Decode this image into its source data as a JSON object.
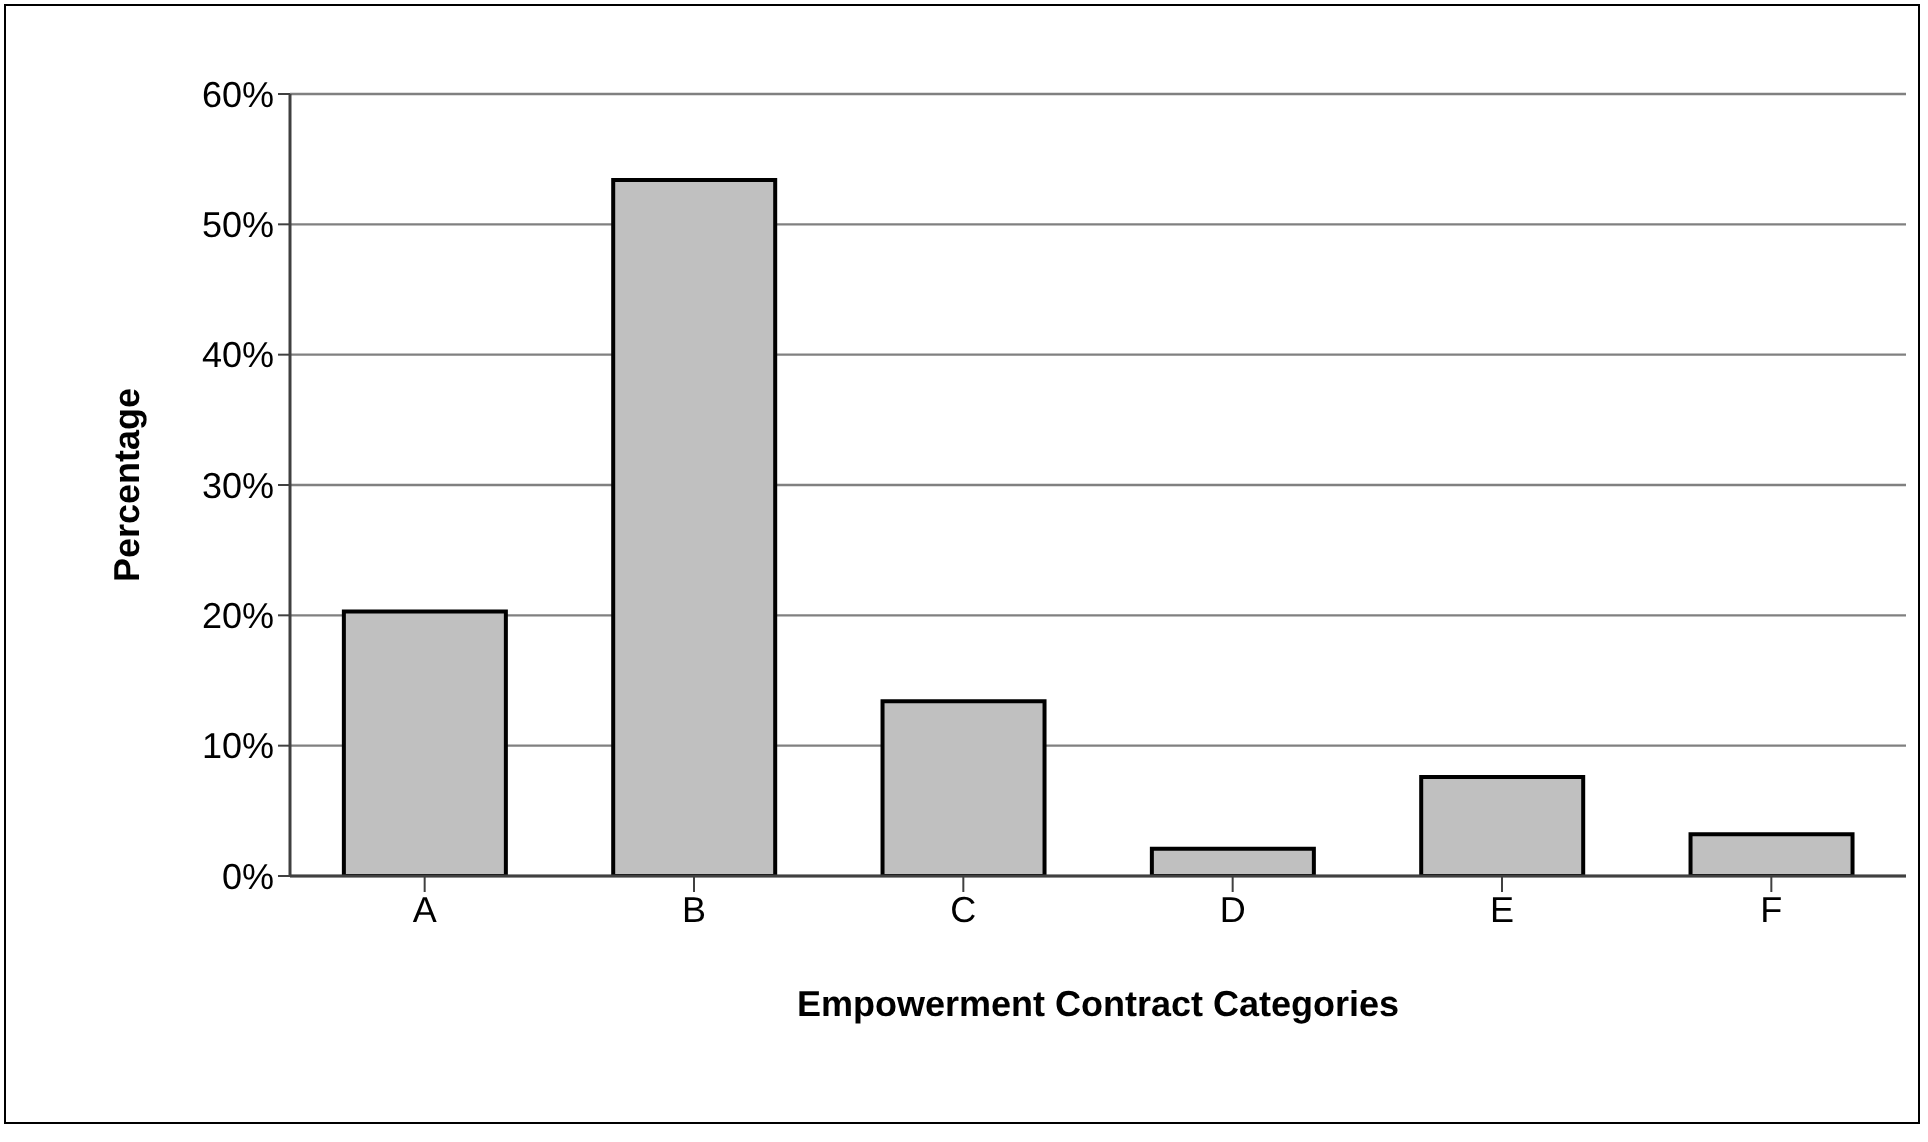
{
  "chart_data": {
    "type": "bar",
    "xlabel": "Empowerment Contract Categories",
    "ylabel": "Percentage",
    "categories": [
      "A",
      "B",
      "C",
      "D",
      "E",
      "F"
    ],
    "values": [
      20.3,
      53.4,
      13.4,
      2.1,
      7.6,
      3.2
    ],
    "color": "#c0c0c0",
    "ylim": [
      0,
      60
    ],
    "yticks": [
      {
        "value": 0,
        "label": "0%"
      },
      {
        "value": 10,
        "label": "10%"
      },
      {
        "value": 20,
        "label": "20%"
      },
      {
        "value": 30,
        "label": "30%"
      },
      {
        "value": 40,
        "label": "40%"
      },
      {
        "value": 50,
        "label": "50%"
      },
      {
        "value": 60,
        "label": "60%"
      }
    ],
    "grid": "y"
  }
}
